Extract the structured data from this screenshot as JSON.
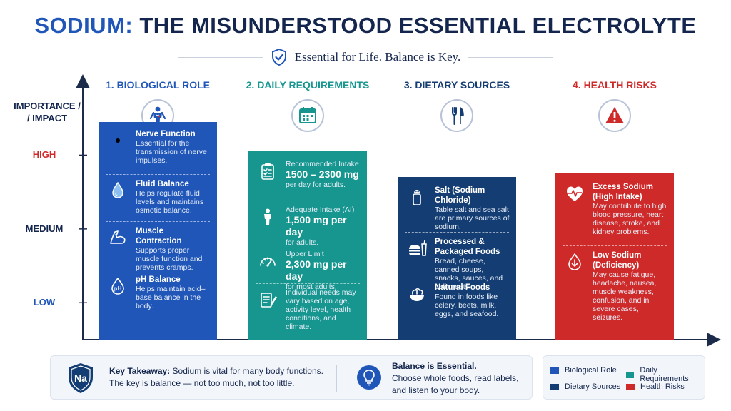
{
  "header": {
    "title_part1": "SODIUM:",
    "title_part2": "THE MISUNDERSTOOD ESSENTIAL ELECTROLYTE",
    "subtitle": "Essential for Life. Balance is Key."
  },
  "colors": {
    "biological_role": "#1f56b8",
    "daily_requirements": "#16968f",
    "dietary_sources": "#143e73",
    "health_risks": "#cf2a2a"
  },
  "chart_data": {
    "type": "bar",
    "ylabel": "IMPORTANCE / / IMPACT",
    "levels": [
      "HIGH",
      "MEDIUM",
      "LOW"
    ],
    "categories": [
      "1. BIOLOGICAL ROLE",
      "2. DAILY REQUIREMENTS",
      "3. DIETARY SOURCES",
      "4. HEALTH RISKS"
    ],
    "values": [
      3.45,
      3.05,
      2.7,
      2.75
    ],
    "ylim": [
      0.5,
      4.0
    ],
    "category_icons": [
      "human-body-icon",
      "calendar-icon",
      "fork-knife-icon",
      "warning-triangle-icon"
    ],
    "bars": [
      {
        "items": [
          {
            "icon": "nerve-icon",
            "heading": "Nerve Function",
            "text": "Essential for the transmission of nerve impulses."
          },
          {
            "icon": "water-drop-icon",
            "heading": "Fluid Balance",
            "text": "Helps regulate fluid levels and maintains osmotic balance."
          },
          {
            "icon": "muscle-arm-icon",
            "heading": "Muscle Contraction",
            "text": "Supports proper muscle function and prevents cramps."
          },
          {
            "icon": "ph-drop-icon",
            "heading": "pH Balance",
            "text": "Helps maintain acid–base balance in the body."
          }
        ]
      },
      {
        "items": [
          {
            "icon": "clipboard-checklist-icon",
            "label": "Recommended Intake",
            "value": "1500 – 2300 mg",
            "text": "per day for adults."
          },
          {
            "icon": "person-icon",
            "label": "Adequate Intake (AI)",
            "value": "1,500 mg per day",
            "text": "for adults."
          },
          {
            "icon": "gauge-icon",
            "label": "Upper Limit",
            "value": "2,300 mg per day",
            "text": "for most adults."
          },
          {
            "icon": "notepad-pen-icon",
            "label": "",
            "value": "",
            "text": "Individual needs may vary based on age, activity level, health conditions, and climate."
          }
        ]
      },
      {
        "items": [
          {
            "icon": "salt-shaker-icon",
            "heading": "Salt (Sodium Chloride)",
            "text": "Table salt and sea salt are primary sources of sodium."
          },
          {
            "icon": "burger-drink-icon",
            "heading": "Processed & Packaged Foods",
            "text": "Bread, cheese, canned soups, snacks, sauces, and deli meats."
          },
          {
            "icon": "salad-bowl-icon",
            "heading": "Natural Foods",
            "text": "Found in foods like celery, beets, milk, eggs, and seafood."
          }
        ]
      },
      {
        "items": [
          {
            "icon": "heart-pulse-icon",
            "heading": "Excess Sodium (High Intake)",
            "text": "May contribute to high blood pressure, heart disease, stroke, and kidney problems."
          },
          {
            "icon": "down-arrow-drop-icon",
            "heading": "Low Sodium (Deficiency)",
            "text": "May cause fatigue, headache, nausea, muscle weakness, confusion, and in severe cases, seizures."
          }
        ]
      }
    ],
    "legend": [
      "Biological Role",
      "Daily Requirements",
      "Dietary Sources",
      "Health Risks"
    ],
    "legend_placement": "bottom-right"
  },
  "footer": {
    "badge_text": "Na",
    "takeaway_label": "Key Takeaway:",
    "takeaway_line1": "Sodium is vital for many body functions.",
    "takeaway_line2": "The key is balance — not too much, not too little.",
    "balance_title": "Balance is Essential.",
    "balance_line1": "Choose whole foods, read labels,",
    "balance_line2": "and listen to your body."
  }
}
